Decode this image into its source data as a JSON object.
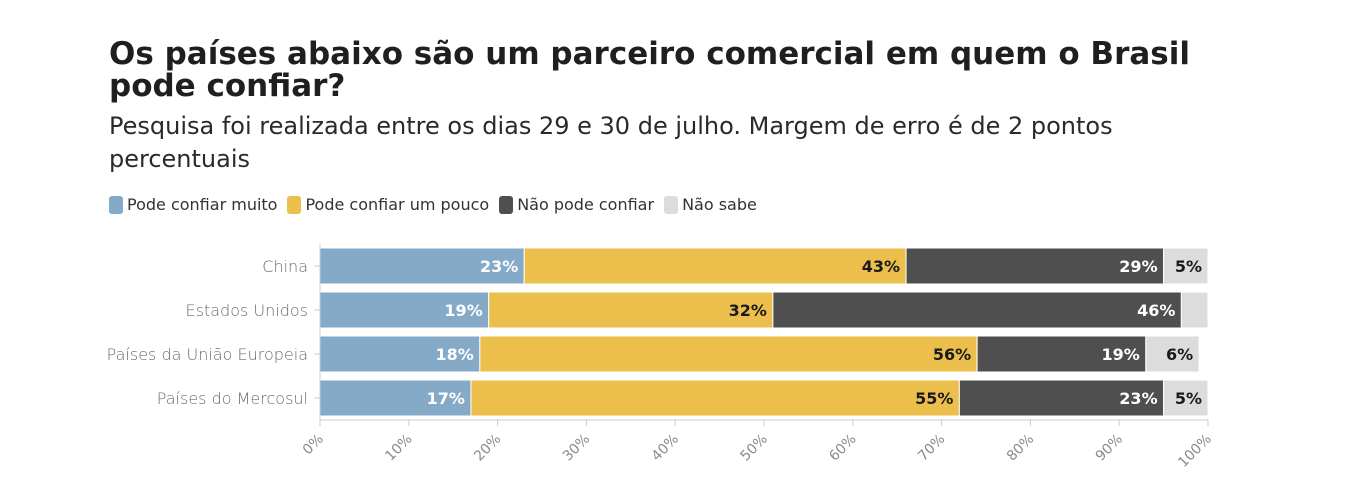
{
  "title": "Os países abaixo são um parceiro comercial em quem o Brasil pode confiar?",
  "subtitle": "Pesquisa foi realizada entre os dias 29 e 30 de julho. Margem de erro é de 2 pontos percentuais",
  "colors": {
    "Pode confiar muito": "#84aac8",
    "Pode confiar um pouco": "#ecbf4c",
    "Não pode confiar": "#4f4f4f",
    "Não sabe": "#dcdcdc"
  },
  "chart_data": {
    "type": "bar",
    "orientation": "horizontal",
    "stacked": true,
    "categories": [
      "China",
      "Estados Unidos",
      "Países da União Europeia",
      "Países do Mercosul"
    ],
    "series": [
      {
        "name": "Pode confiar muito",
        "values": [
          23,
          19,
          18,
          17
        ],
        "labels": [
          "23%",
          "19%",
          "18%",
          "17%"
        ]
      },
      {
        "name": "Pode confiar um pouco",
        "values": [
          43,
          32,
          56,
          55
        ],
        "labels": [
          "43%",
          "32%",
          "56%",
          "55%"
        ]
      },
      {
        "name": "Não pode confiar",
        "values": [
          29,
          46,
          19,
          23
        ],
        "labels": [
          "29%",
          "46%",
          "19%",
          "23%"
        ]
      },
      {
        "name": "Não sabe",
        "values": [
          5,
          3,
          6,
          5
        ],
        "labels": [
          "5%",
          "",
          "6%",
          "5%"
        ]
      }
    ],
    "xlim": [
      0,
      100
    ],
    "xticks": [
      "0%",
      "10%",
      "20%",
      "30%",
      "40%",
      "50%",
      "60%",
      "70%",
      "80%",
      "90%",
      "100%"
    ],
    "legend": "top-left",
    "grid": false
  }
}
